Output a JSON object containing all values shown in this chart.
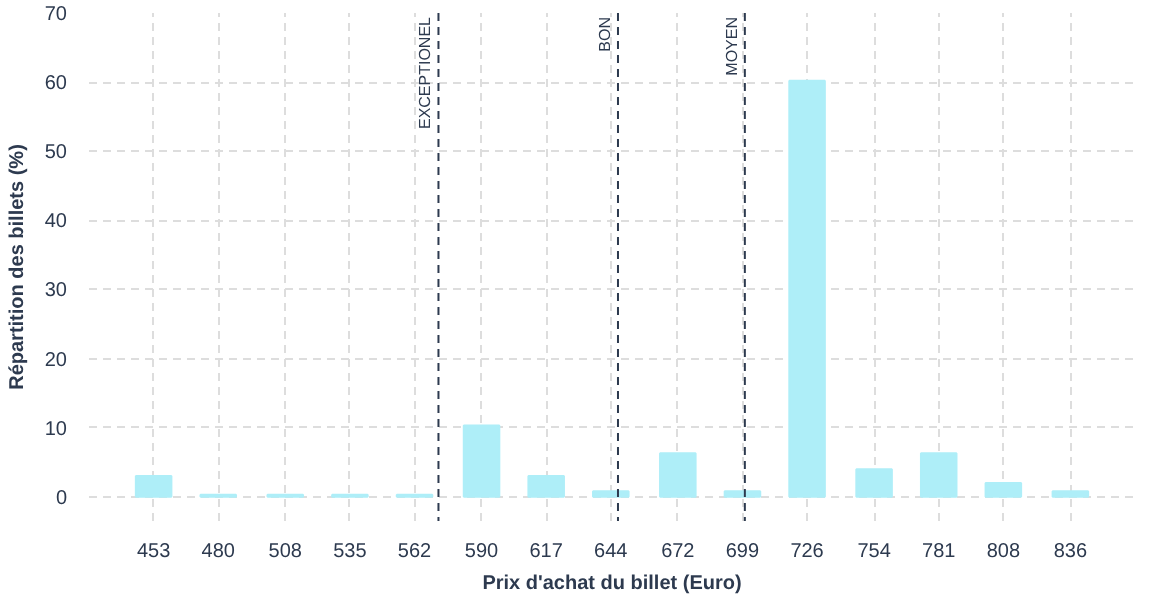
{
  "chart_data": {
    "type": "bar",
    "xlabel": "Prix d'achat du billet (Euro)",
    "ylabel": "Répartition des billets (%)",
    "x": [
      453,
      480,
      508,
      535,
      562,
      590,
      617,
      644,
      672,
      699,
      726,
      754,
      781,
      808,
      836
    ],
    "values": [
      3,
      0.3,
      0.3,
      0.3,
      0.3,
      10.3,
      3,
      0.8,
      6.3,
      0.8,
      60.2,
      4,
      6.3,
      2,
      0.8
    ],
    "color": "#aeeef8",
    "xlim": [
      426,
      863
    ],
    "xticks": [
      453,
      480,
      508,
      535,
      562,
      590,
      617,
      644,
      672,
      699,
      726,
      754,
      781,
      808,
      836
    ],
    "ylim": [
      -3.5,
      70
    ],
    "yticks": [
      0,
      10,
      20,
      30,
      40,
      50,
      60,
      70
    ],
    "grid": true,
    "ref_lines": [
      {
        "axis": "x",
        "value": 572,
        "label": "EXCEPTIONEL",
        "color": "#2d3a4f",
        "line_style": "dashed"
      },
      {
        "axis": "x",
        "value": 647,
        "label": "BON",
        "color": "#2d3a4f",
        "line_style": "dashed"
      },
      {
        "axis": "x",
        "value": 700,
        "label": "MOYEN",
        "color": "#2d3a4f",
        "line_style": "dashed"
      }
    ]
  }
}
